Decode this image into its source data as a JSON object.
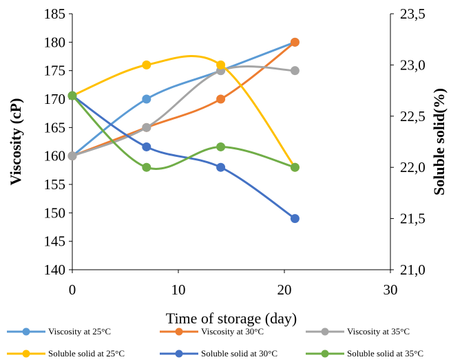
{
  "chart_data": {
    "type": "line",
    "xlabel": "Time of storage (day)",
    "ylabel_left": "Viscosity (cP)",
    "ylabel_right": "Soluble  solid(%)",
    "xlim": [
      0,
      30
    ],
    "ylim_left": [
      140,
      185
    ],
    "ylim_right": [
      21.0,
      23.5
    ],
    "x_ticks": [
      "0",
      "10",
      "20",
      "30"
    ],
    "y_left_ticks": [
      "140",
      "145",
      "150",
      "155",
      "160",
      "165",
      "170",
      "175",
      "180",
      "185"
    ],
    "y_right_ticks": [
      "21,0",
      "21,5",
      "22,0",
      "22,5",
      "23,0",
      "23,5"
    ],
    "grid": false,
    "legend_position": "bottom",
    "series": [
      {
        "name": "Viscosity at 25°C",
        "axis": "left",
        "color": "#5B9BD5",
        "x": [
          0,
          7,
          14,
          21
        ],
        "values": [
          160,
          170,
          175,
          180
        ]
      },
      {
        "name": "Viscosity  at 30°C",
        "axis": "left",
        "color": "#ED7D31",
        "x": [
          0,
          7,
          14,
          21
        ],
        "values": [
          160,
          165,
          170,
          180
        ]
      },
      {
        "name": "Viscosity  at 35°C",
        "axis": "left",
        "color": "#A5A5A5",
        "x": [
          0,
          7,
          14,
          21
        ],
        "values": [
          160,
          165,
          175,
          175
        ]
      },
      {
        "name": "Soluble solid at 25°C",
        "axis": "right",
        "color": "#FFC000",
        "x": [
          0,
          7,
          14,
          21
        ],
        "values": [
          22.7,
          23.0,
          23.0,
          22.0
        ]
      },
      {
        "name": "Soluble solid at 30°C",
        "axis": "right",
        "color": "#4472C4",
        "x": [
          0,
          7,
          14,
          21
        ],
        "values": [
          22.7,
          22.2,
          22.0,
          21.5
        ]
      },
      {
        "name": "Soluble solid at 35°C",
        "axis": "right",
        "color": "#70AD47",
        "x": [
          0,
          7,
          14,
          21
        ],
        "values": [
          22.7,
          22.0,
          22.2,
          22.0
        ]
      }
    ]
  }
}
